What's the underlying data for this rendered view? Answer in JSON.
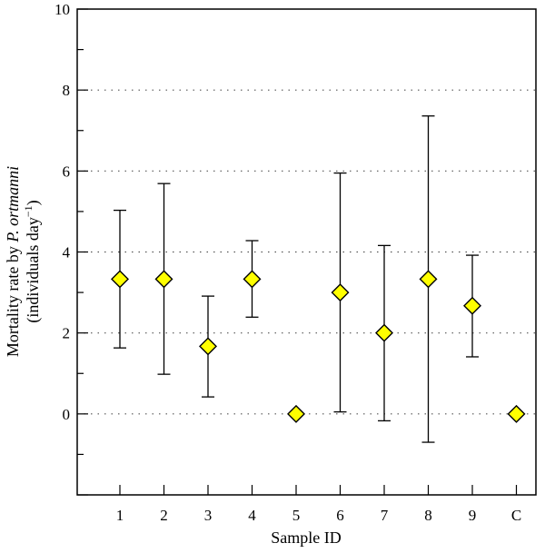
{
  "chart_data": {
    "type": "scatter",
    "categories": [
      "1",
      "2",
      "3",
      "4",
      "5",
      "6",
      "7",
      "8",
      "9",
      "C"
    ],
    "values": [
      3.33,
      3.33,
      1.67,
      3.33,
      0.0,
      3.0,
      2.0,
      3.33,
      2.67,
      0.0
    ],
    "error_low": [
      1.63,
      0.98,
      0.42,
      2.39,
      null,
      0.05,
      -0.17,
      -0.7,
      1.41,
      null
    ],
    "error_high": [
      5.03,
      5.69,
      2.91,
      4.28,
      null,
      5.95,
      4.16,
      7.36,
      3.92,
      null
    ],
    "xlabel": "Sample  ID",
    "ylabel_line1_prefix": "Mortality rate by ",
    "ylabel_line1_species": "P. ortmanni",
    "ylabel_line2_base": "(individuals day",
    "ylabel_line2_exp": "−1",
    "ylabel_line2_close": ")",
    "yticks": [
      "0",
      "2",
      "4",
      "6",
      "8",
      "10"
    ],
    "ylim": [
      -2,
      10
    ],
    "grid": "horizontal dotted at major ticks",
    "marker": "diamond",
    "colors": {
      "marker_fill": "#ffff00",
      "marker_stroke": "#000000",
      "grid": "#555555"
    }
  }
}
